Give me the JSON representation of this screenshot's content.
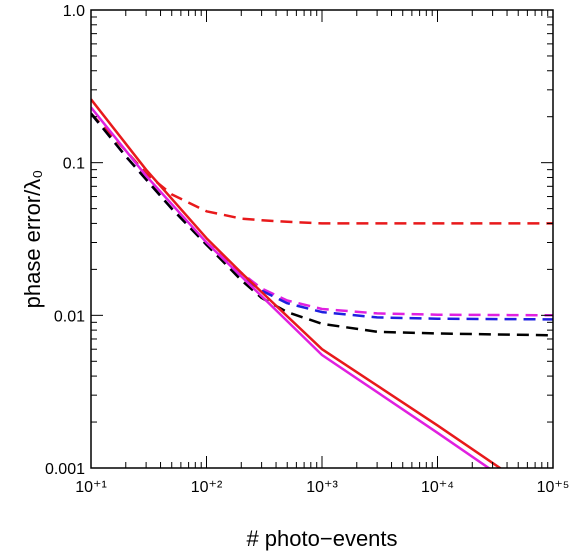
{
  "chart_data": {
    "type": "line",
    "title": "",
    "xlabel": "# photo−events",
    "ylabel": "phase error/λ₀",
    "xscale": "log",
    "yscale": "log",
    "xlim": [
      10,
      100000
    ],
    "ylim": [
      0.001,
      1.0
    ],
    "grid": false,
    "legend": "none",
    "x_ticks": [
      {
        "value": 10,
        "label": "10⁺¹"
      },
      {
        "value": 100,
        "label": "10⁺²"
      },
      {
        "value": 1000,
        "label": "10⁺³"
      },
      {
        "value": 10000,
        "label": "10⁺⁴"
      },
      {
        "value": 100000,
        "label": "10⁺⁵"
      }
    ],
    "y_ticks": [
      {
        "value": 0.001,
        "label": "0.001"
      },
      {
        "value": 0.01,
        "label": "0.01"
      },
      {
        "value": 0.1,
        "label": "0.1"
      },
      {
        "value": 1.0,
        "label": "1.0"
      }
    ],
    "series": [
      {
        "style": "dashed",
        "color": "#e8191b",
        "x": [
          10,
          20,
          30,
          50,
          100,
          200,
          300,
          500,
          1000,
          3000,
          10000,
          30000,
          100000
        ],
        "y": [
          0.21,
          0.12,
          0.085,
          0.062,
          0.048,
          0.043,
          0.042,
          0.041,
          0.04,
          0.04,
          0.04,
          0.04,
          0.04
        ]
      },
      {
        "style": "dashed",
        "color": "#e020e0",
        "x": [
          10,
          20,
          50,
          100,
          200,
          300,
          500,
          1000,
          3000,
          10000,
          100000
        ],
        "y": [
          0.21,
          0.11,
          0.05,
          0.03,
          0.019,
          0.015,
          0.0125,
          0.011,
          0.0103,
          0.0101,
          0.01
        ]
      },
      {
        "style": "dashed",
        "color": "#1f1fe0",
        "x": [
          10,
          20,
          50,
          100,
          200,
          300,
          500,
          1000,
          3000,
          10000,
          100000
        ],
        "y": [
          0.21,
          0.11,
          0.05,
          0.029,
          0.018,
          0.0145,
          0.012,
          0.0105,
          0.0097,
          0.0095,
          0.0094
        ]
      },
      {
        "style": "dashed",
        "color": "#000000",
        "x": [
          10,
          20,
          50,
          100,
          200,
          300,
          500,
          1000,
          3000,
          10000,
          100000
        ],
        "y": [
          0.21,
          0.11,
          0.05,
          0.029,
          0.017,
          0.013,
          0.0105,
          0.0088,
          0.0078,
          0.0076,
          0.0074
        ]
      },
      {
        "style": "solid",
        "color": "#e020e0",
        "x": [
          10,
          30,
          100,
          200,
          1000,
          10000,
          30000
        ],
        "y": [
          0.23,
          0.082,
          0.03,
          0.018,
          0.0055,
          0.0017,
          0.00096
        ]
      },
      {
        "style": "solid",
        "color": "#e8191b",
        "x": [
          10,
          30,
          100,
          200,
          1000,
          10000,
          40000
        ],
        "y": [
          0.26,
          0.09,
          0.032,
          0.019,
          0.006,
          0.0019,
          0.00093
        ]
      }
    ]
  }
}
